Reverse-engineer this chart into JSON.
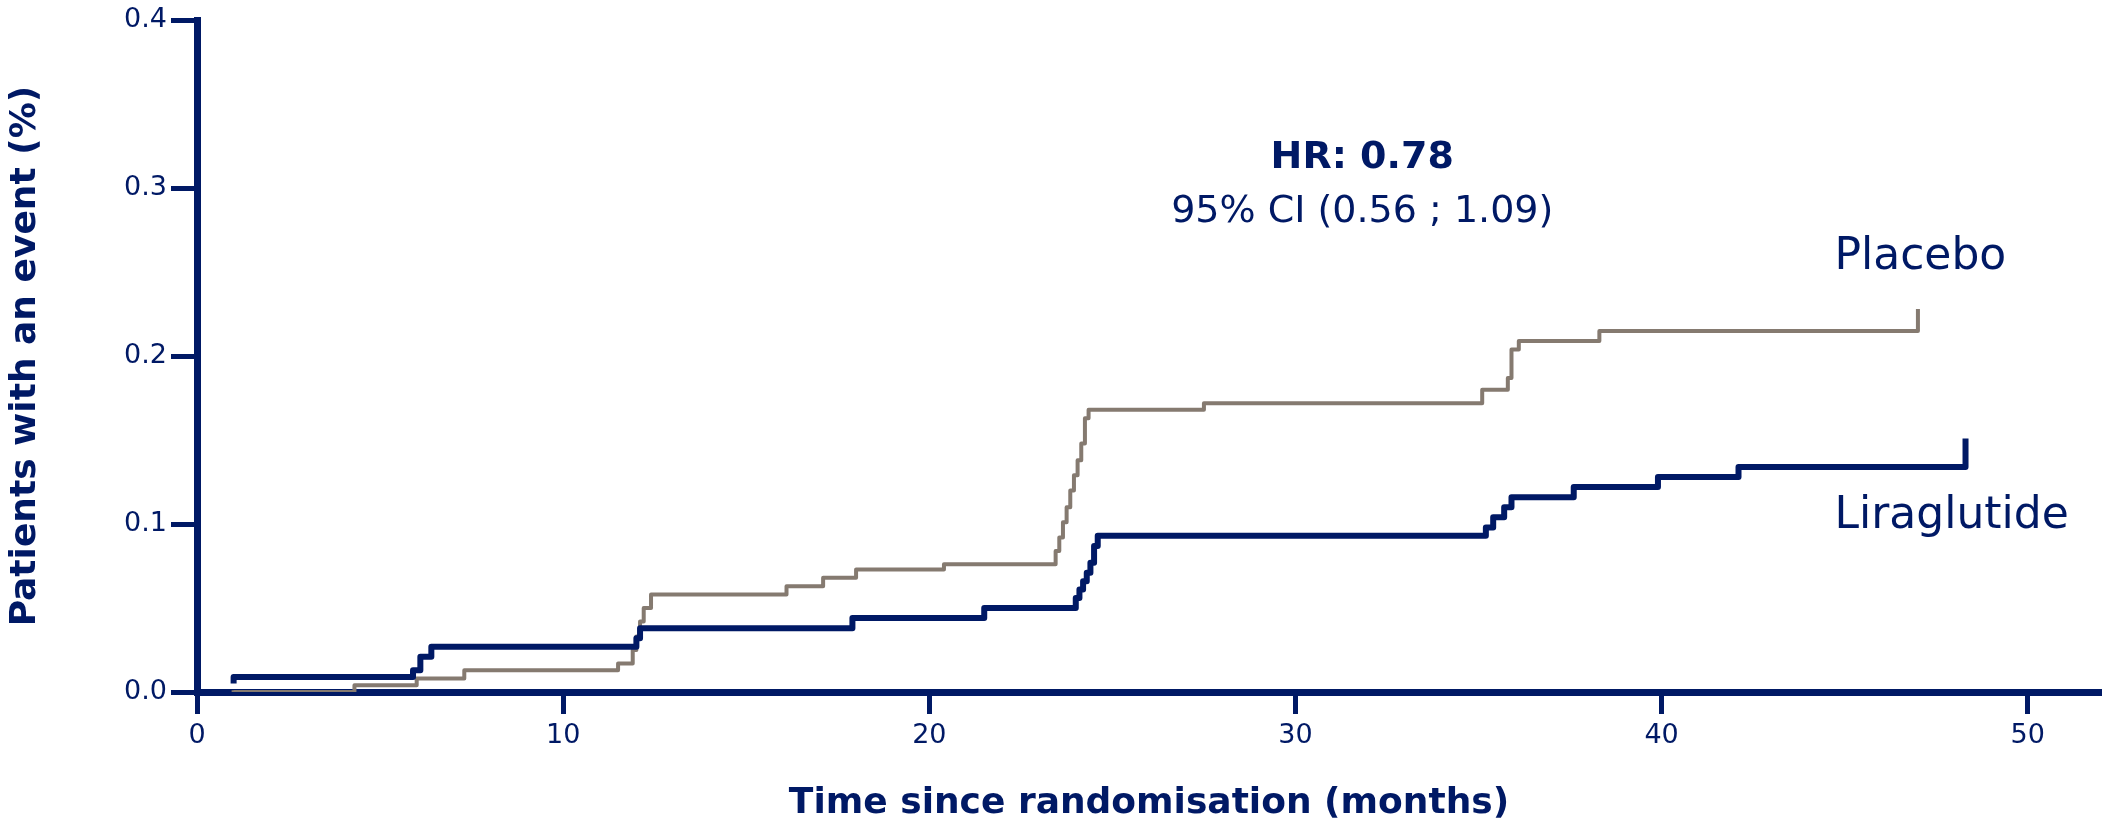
{
  "chart_data": {
    "type": "step",
    "xlabel": "Time since randomisation (months)",
    "ylabel": "Patients with an event (%)",
    "xlim": [
      0,
      52
    ],
    "xticks": [
      0,
      10,
      20,
      30,
      40,
      50
    ],
    "ylim": [
      0,
      0.4
    ],
    "yticks": [
      {
        "value": 0,
        "label": "0.0"
      },
      {
        "value": 0.1,
        "label": "0.1"
      },
      {
        "value": 0.2,
        "label": "0.2"
      },
      {
        "value": 0.3,
        "label": "0.3"
      },
      {
        "value": 0.4,
        "label": "0.4"
      }
    ],
    "annotations": [
      "HR: 0.78",
      "95% CI (0.56 ; 1.09)"
    ],
    "series": [
      {
        "name": "Liraglutide",
        "color": "#001965",
        "x": [
          1.0,
          5.9,
          6.1,
          6.4,
          12.0,
          12.1,
          17.9,
          21.5,
          24.0,
          24.1,
          24.2,
          24.3,
          24.4,
          24.5,
          24.6,
          35.2,
          35.4,
          35.7,
          35.9,
          37.6,
          39.9,
          42.1,
          42.5,
          48.3,
          48.3
        ],
        "values": [
          0.005,
          0.009,
          0.013,
          0.021,
          0.027,
          0.032,
          0.038,
          0.044,
          0.05,
          0.056,
          0.061,
          0.066,
          0.071,
          0.077,
          0.087,
          0.093,
          0.098,
          0.104,
          0.11,
          0.116,
          0.122,
          0.128,
          0.134,
          0.134,
          0.151
        ]
      },
      {
        "name": "Placebo",
        "color": "#857a70",
        "x": [
          1.0,
          4.3,
          6.0,
          7.3,
          11.5,
          11.9,
          12.0,
          12.1,
          12.2,
          12.4,
          16.1,
          17.1,
          18.0,
          20.4,
          23.45,
          23.55,
          23.65,
          23.75,
          23.85,
          23.95,
          24.05,
          24.15,
          24.25,
          24.35,
          27.5,
          35.1,
          35.8,
          35.9,
          36.1,
          38.3,
          39.6,
          47.0,
          47.0
        ],
        "values": [
          0.001,
          0.0,
          0.004,
          0.008,
          0.013,
          0.017,
          0.025,
          0.033,
          0.042,
          0.05,
          0.058,
          0.063,
          0.068,
          0.073,
          0.076,
          0.084,
          0.092,
          0.101,
          0.11,
          0.12,
          0.129,
          0.138,
          0.148,
          0.163,
          0.168,
          0.172,
          0.18,
          0.187,
          0.204,
          0.209,
          0.215,
          0.215,
          0.228
        ]
      }
    ]
  }
}
